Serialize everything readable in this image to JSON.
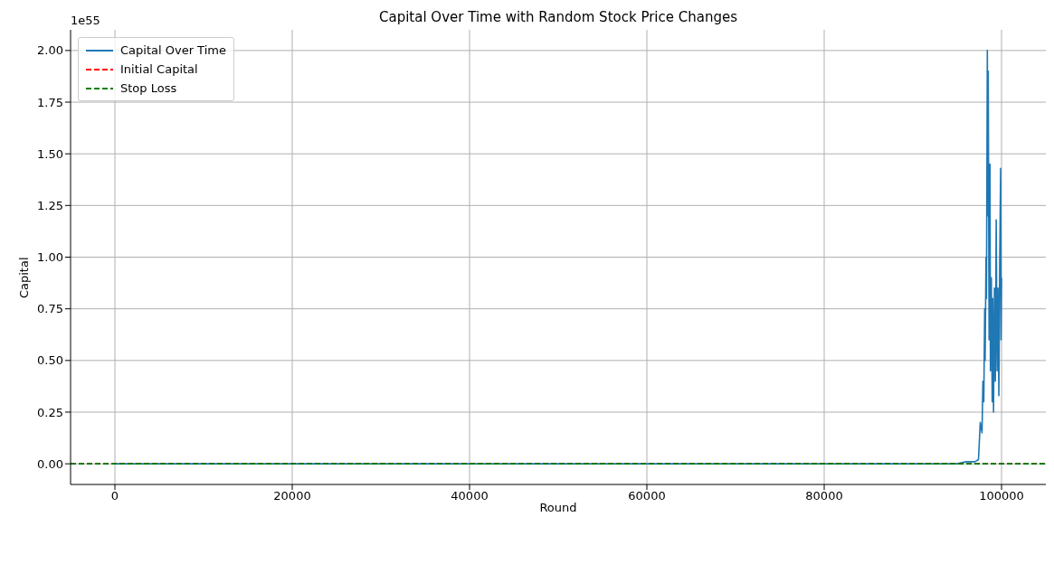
{
  "chart_data": {
    "type": "line",
    "title": "Capital Over Time with Random Stock Price Changes",
    "xlabel": "Round",
    "ylabel": "Capital",
    "annotations": [
      "1e55"
    ],
    "x": [
      0,
      95000,
      96000,
      97000,
      97400,
      97600,
      97800,
      97900,
      98000,
      98100,
      98150,
      98250,
      98300,
      98400,
      98450,
      98500,
      98600,
      98700,
      98750,
      98850,
      98950,
      99000,
      99100,
      99200,
      99300,
      99400,
      99500,
      99600,
      99700,
      99800,
      99900,
      99950,
      100000
    ],
    "series": [
      {
        "name": "Capital Over Time",
        "color": "#1f77b4",
        "values": [
          0,
          0,
          0.01,
          0.01,
          0.02,
          0.2,
          0.15,
          0.4,
          0.3,
          0.75,
          0.5,
          1.0,
          0.8,
          2.0,
          1.2,
          1.9,
          0.6,
          1.45,
          0.45,
          0.9,
          0.3,
          0.8,
          0.25,
          0.85,
          0.4,
          1.18,
          0.45,
          0.85,
          0.33,
          1.0,
          1.43,
          0.6,
          0.9
        ]
      }
    ],
    "ref_lines": [
      {
        "axis": "y",
        "value": 0,
        "label": "Initial Capital",
        "color": "#ff0000",
        "line_style": "dashed"
      },
      {
        "axis": "y",
        "value": 0,
        "label": "Stop Loss",
        "color": "#008000",
        "line_style": "dashed"
      }
    ],
    "xlim": [
      -5000,
      105000
    ],
    "xticks": [
      0,
      20000,
      40000,
      60000,
      80000,
      100000
    ],
    "ylim": [
      -0.1,
      2.1
    ],
    "yticks": [
      {
        "value": 0,
        "label": "0.00"
      },
      {
        "value": 0.25,
        "label": "0.25"
      },
      {
        "value": 0.5,
        "label": "0.50"
      },
      {
        "value": 0.75,
        "label": "0.75"
      },
      {
        "value": 1,
        "label": "1.00"
      },
      {
        "value": 1.25,
        "label": "1.25"
      },
      {
        "value": 1.5,
        "label": "1.50"
      },
      {
        "value": 1.75,
        "label": "1.75"
      },
      {
        "value": 2,
        "label": "2.00"
      }
    ],
    "grid": true,
    "legend": "top left",
    "line_style": "solid",
    "marker": "none"
  }
}
